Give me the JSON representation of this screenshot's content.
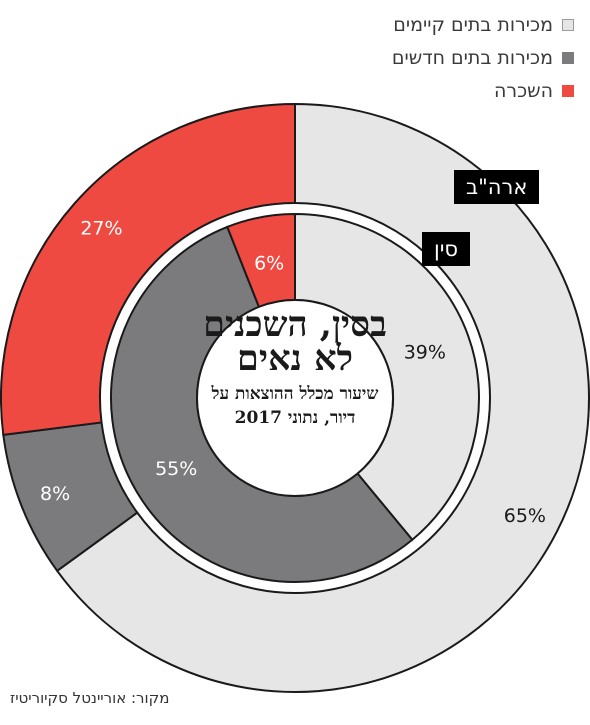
{
  "chart_data": {
    "type": "pie",
    "title": "בסין, השכנים לא נאים",
    "subtitle": "שיעור מכלל ההוצאות על דיור, נתוני 2017",
    "categories": [
      "מכירות בתים קיימים",
      "מכירות בתים חדשים",
      "השכרה"
    ],
    "colors": [
      "#e6e6e6",
      "#7b7b7d",
      "#ef4a42"
    ],
    "series": [
      {
        "name": "ארה\"ב",
        "values": [
          65,
          8,
          27
        ],
        "value_labels": [
          "65%",
          "8%",
          "27%"
        ]
      },
      {
        "name": "סין",
        "values": [
          39,
          55,
          6
        ],
        "value_labels": [
          "39%",
          "55%",
          "6%"
        ]
      }
    ],
    "legend_position": "top-right"
  },
  "source": "מקור: אוריינטל סקיוריטיז"
}
